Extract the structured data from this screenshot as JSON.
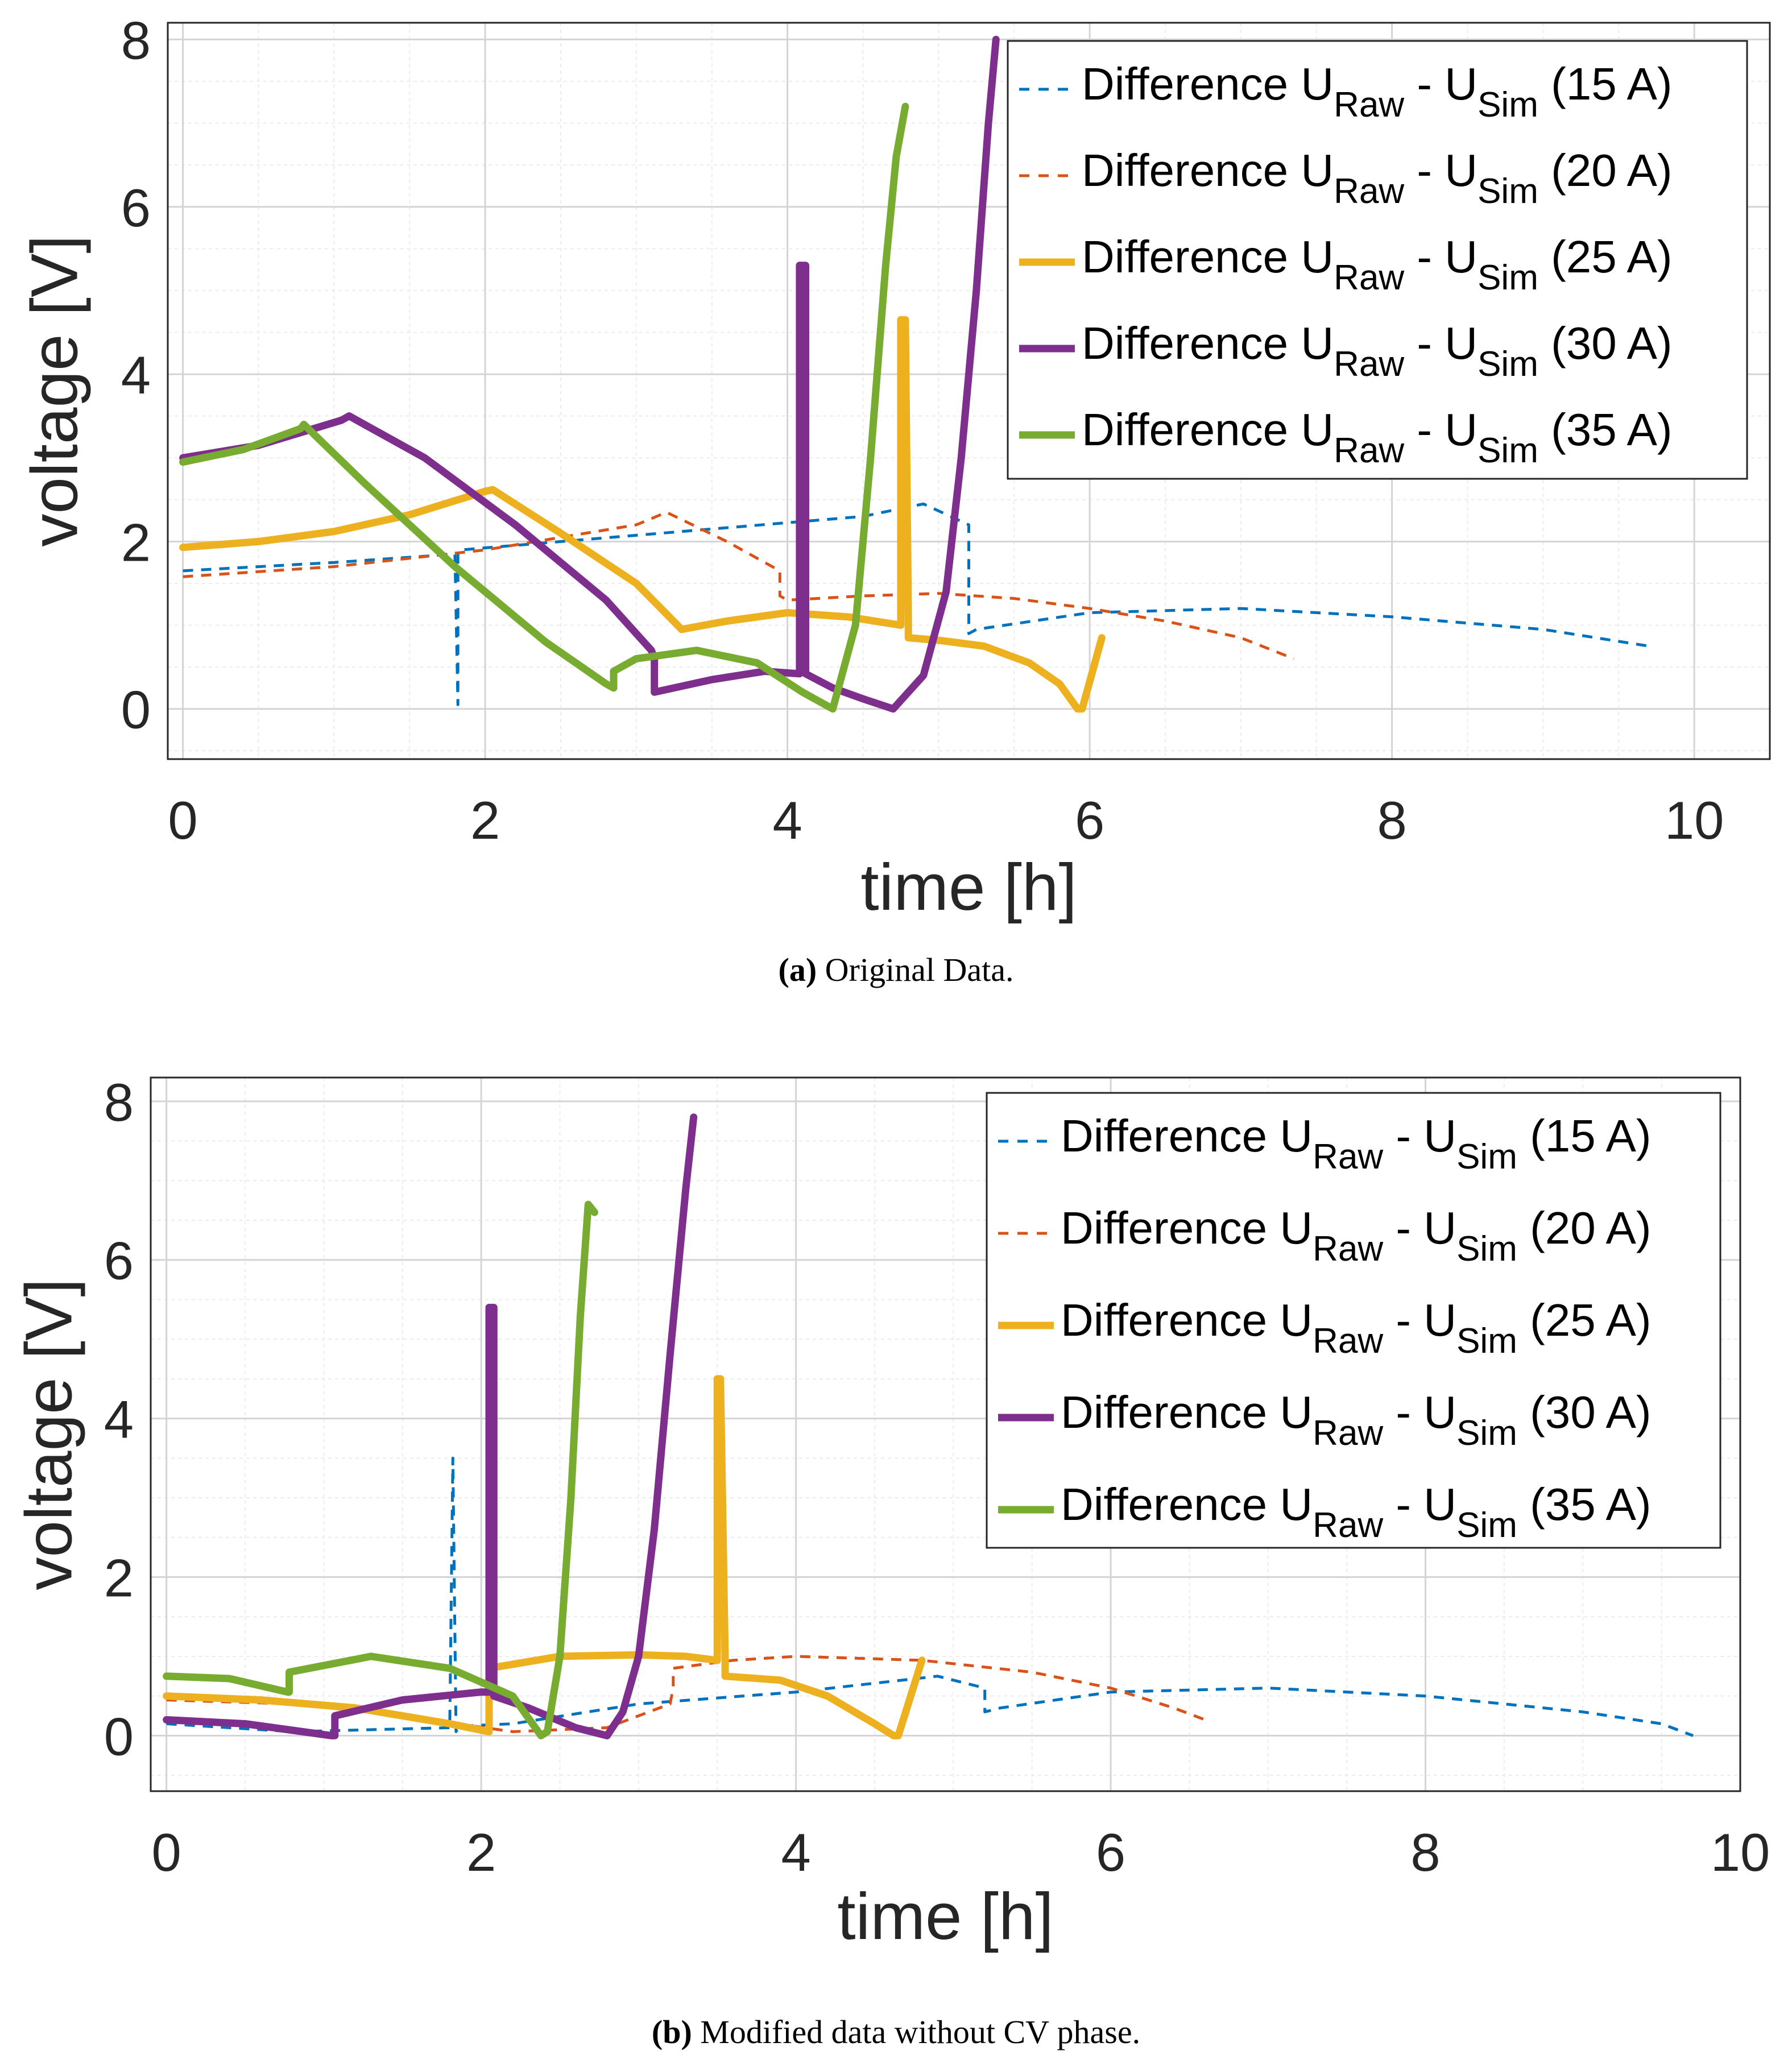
{
  "chart_data": [
    {
      "type": "line",
      "caption_tag": "(a)",
      "caption_text": "Original Data.",
      "xlabel": "time [h]",
      "ylabel": "voltage [V]",
      "xlim": [
        -0.1,
        10.5
      ],
      "ylim": [
        -0.6,
        8.2
      ],
      "xticks": [
        0,
        2,
        4,
        6,
        8,
        10
      ],
      "yticks": [
        0,
        2,
        4,
        6,
        8
      ],
      "grid": true,
      "legend_position": "top-right",
      "series": [
        {
          "name": "Difference U_Raw - U_Sim (15 A)",
          "label_prefix": "Difference U",
          "sub1": "Raw",
          "mid": " - U",
          "sub2": "Sim",
          "label_suffix": " (15 A)",
          "color": "#0072BD",
          "style": "dashed",
          "x": [
            0,
            1.0,
            1.8,
            1.82,
            1.82,
            1.84,
            2.5,
            3.5,
            4.5,
            4.9,
            5.2,
            5.2,
            5.25,
            6.0,
            7.0,
            8.0,
            9.0,
            9.7
          ],
          "y": [
            1.65,
            1.75,
            1.85,
            0.05,
            1.85,
            1.9,
            2.0,
            2.15,
            2.3,
            2.45,
            2.2,
            0.9,
            0.95,
            1.15,
            1.2,
            1.1,
            0.95,
            0.75
          ]
        },
        {
          "name": "Difference U_Raw - U_Sim (20 A)",
          "label_prefix": "Difference U",
          "sub1": "Raw",
          "mid": " - U",
          "sub2": "Sim",
          "label_suffix": " (20 A)",
          "color": "#D95319",
          "style": "dashed",
          "x": [
            0,
            1.0,
            2.0,
            3.0,
            3.2,
            3.6,
            3.95,
            3.95,
            4.0,
            4.5,
            5.0,
            5.5,
            6.0,
            6.5,
            7.0,
            7.35
          ],
          "y": [
            1.58,
            1.7,
            1.9,
            2.2,
            2.35,
            2.0,
            1.65,
            1.35,
            1.3,
            1.35,
            1.38,
            1.32,
            1.2,
            1.05,
            0.85,
            0.6
          ]
        },
        {
          "name": "Difference U_Raw - U_Sim (25 A)",
          "label_prefix": "Difference U",
          "sub1": "Raw",
          "mid": " - U",
          "sub2": "Sim",
          "label_suffix": " (25 A)",
          "color": "#EDB120",
          "style": "solid",
          "x": [
            0,
            0.5,
            1.0,
            1.5,
            2.0,
            2.05,
            2.5,
            3.0,
            3.3,
            3.6,
            4.0,
            4.4,
            4.75,
            4.75,
            4.78,
            4.8,
            4.8,
            5.0,
            5.3,
            5.6,
            5.8,
            5.92,
            5.95,
            6.08
          ],
          "y": [
            1.93,
            2.0,
            2.12,
            2.32,
            2.6,
            2.62,
            2.1,
            1.5,
            0.95,
            1.05,
            1.15,
            1.1,
            1.0,
            4.65,
            4.65,
            1.05,
            0.85,
            0.82,
            0.75,
            0.55,
            0.3,
            0.0,
            0.0,
            0.85
          ]
        },
        {
          "name": "Difference U_Raw - U_Sim (30 A)",
          "label_prefix": "Difference U",
          "sub1": "Raw",
          "mid": " - U",
          "sub2": "Sim",
          "label_suffix": " (30 A)",
          "color": "#7E2F8E",
          "style": "solid",
          "x": [
            0,
            0.5,
            1.05,
            1.1,
            1.6,
            2.2,
            2.8,
            3.1,
            3.12,
            3.12,
            3.5,
            3.85,
            4.08,
            4.08,
            4.12,
            4.12,
            4.3,
            4.5,
            4.7,
            4.9,
            5.05,
            5.15,
            5.25,
            5.33,
            5.38
          ],
          "y": [
            3.0,
            3.15,
            3.45,
            3.5,
            3.0,
            2.2,
            1.3,
            0.7,
            0.6,
            0.2,
            0.35,
            0.45,
            0.42,
            5.3,
            5.3,
            0.42,
            0.25,
            0.12,
            0.0,
            0.4,
            1.4,
            3.0,
            5.0,
            7.0,
            8.0
          ]
        },
        {
          "name": "Difference U_Raw - U_Sim (35 A)",
          "label_prefix": "Difference U",
          "sub1": "Raw",
          "mid": " - U",
          "sub2": "Sim",
          "label_suffix": " (35 A)",
          "color": "#77AC30",
          "style": "solid",
          "x": [
            0,
            0.4,
            0.78,
            0.8,
            1.2,
            1.8,
            2.4,
            2.8,
            2.85,
            2.85,
            3.0,
            3.4,
            3.8,
            4.1,
            4.3,
            4.45,
            4.55,
            4.65,
            4.72,
            4.78
          ],
          "y": [
            2.95,
            3.1,
            3.35,
            3.4,
            2.7,
            1.7,
            0.8,
            0.3,
            0.25,
            0.45,
            0.6,
            0.7,
            0.55,
            0.2,
            0.0,
            1.0,
            3.0,
            5.3,
            6.6,
            7.2
          ]
        }
      ]
    },
    {
      "type": "line",
      "caption_tag": "(b)",
      "caption_text": "Modified data without CV phase.",
      "xlabel": "time [h]",
      "ylabel": "voltage [V]",
      "xlim": [
        -0.1,
        10.0
      ],
      "ylim": [
        -0.7,
        8.3
      ],
      "xticks": [
        0,
        2,
        4,
        6,
        8,
        10
      ],
      "yticks": [
        0,
        2,
        4,
        6,
        8
      ],
      "grid": true,
      "legend_position": "top-right",
      "series": [
        {
          "name": "Difference U_Raw - U_Sim (15 A)",
          "label_prefix": "Difference U",
          "sub1": "Raw",
          "mid": " - U",
          "sub2": "Sim",
          "label_suffix": " (15 A)",
          "color": "#0072BD",
          "style": "dashed",
          "x": [
            0,
            0.8,
            1.8,
            1.82,
            1.84,
            1.86,
            2.2,
            3.0,
            4.0,
            4.9,
            5.2,
            5.2,
            5.3,
            6.0,
            7.0,
            8.0,
            9.0,
            9.5,
            9.7
          ],
          "y": [
            0.15,
            0.05,
            0.1,
            3.5,
            0.05,
            0.12,
            0.15,
            0.4,
            0.55,
            0.75,
            0.6,
            0.3,
            0.35,
            0.55,
            0.6,
            0.5,
            0.3,
            0.15,
            0.0
          ]
        },
        {
          "name": "Difference U_Raw - U_Sim (20 A)",
          "label_prefix": "Difference U",
          "sub1": "Raw",
          "mid": " - U",
          "sub2": "Sim",
          "label_suffix": " (20 A)",
          "color": "#D95319",
          "style": "dashed",
          "x": [
            0,
            0.8,
            1.5,
            2.2,
            2.8,
            3.2,
            3.22,
            3.22,
            3.6,
            4.0,
            4.8,
            5.5,
            6.0,
            6.4,
            6.6
          ],
          "y": [
            0.45,
            0.4,
            0.25,
            0.05,
            0.1,
            0.4,
            0.6,
            0.85,
            0.95,
            1.0,
            0.95,
            0.8,
            0.6,
            0.35,
            0.2
          ]
        },
        {
          "name": "Difference U_Raw - U_Sim (25 A)",
          "label_prefix": "Difference U",
          "sub1": "Raw",
          "mid": " - U",
          "sub2": "Sim",
          "label_suffix": " (25 A)",
          "color": "#EDB120",
          "style": "solid",
          "x": [
            0,
            0.6,
            1.2,
            1.8,
            2.05,
            2.05,
            2.5,
            3.0,
            3.3,
            3.5,
            3.5,
            3.52,
            3.55,
            3.55,
            3.9,
            4.2,
            4.5,
            4.62,
            4.65,
            4.8
          ],
          "y": [
            0.5,
            0.45,
            0.35,
            0.15,
            0.05,
            0.85,
            1.0,
            1.02,
            1.0,
            0.95,
            4.5,
            4.5,
            0.95,
            0.75,
            0.7,
            0.5,
            0.15,
            0.0,
            0.0,
            0.95
          ]
        },
        {
          "name": "Difference U_Raw - U_Sim (30 A)",
          "label_prefix": "Difference U",
          "sub1": "Raw",
          "mid": " - U",
          "sub2": "Sim",
          "label_suffix": " (30 A)",
          "color": "#7E2F8E",
          "style": "solid",
          "x": [
            0,
            0.5,
            1.05,
            1.07,
            1.07,
            1.5,
            2.0,
            2.05,
            2.05,
            2.08,
            2.08,
            2.3,
            2.6,
            2.8,
            2.9,
            3.0,
            3.1,
            3.2,
            3.3,
            3.35
          ],
          "y": [
            0.2,
            0.15,
            0.0,
            0.0,
            0.25,
            0.45,
            0.55,
            0.55,
            5.4,
            5.4,
            0.5,
            0.35,
            0.1,
            0.0,
            0.3,
            1.0,
            2.6,
            4.8,
            6.9,
            7.8
          ]
        },
        {
          "name": "Difference U_Raw - U_Sim (35 A)",
          "label_prefix": "Difference U",
          "sub1": "Raw",
          "mid": " - U",
          "sub2": "Sim",
          "label_suffix": " (35 A)",
          "color": "#77AC30",
          "style": "solid",
          "x": [
            0,
            0.4,
            0.77,
            0.78,
            0.78,
            1.3,
            1.8,
            2.2,
            2.38,
            2.42,
            2.5,
            2.57,
            2.63,
            2.68,
            2.72
          ],
          "y": [
            0.75,
            0.72,
            0.55,
            0.55,
            0.8,
            1.0,
            0.85,
            0.5,
            0.0,
            0.05,
            1.0,
            3.0,
            5.3,
            6.7,
            6.6
          ]
        }
      ]
    }
  ]
}
